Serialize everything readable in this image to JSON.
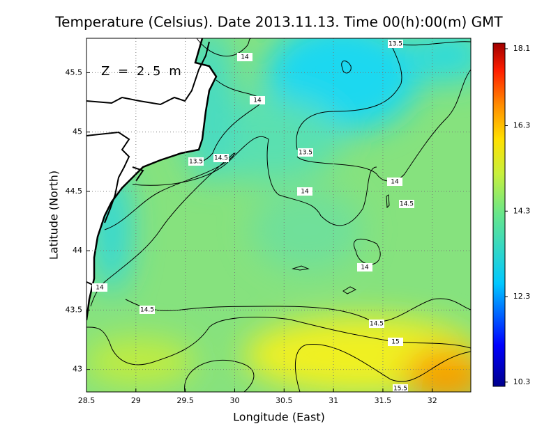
{
  "title": "Temperature (Celsius). Date 2013.11.13. Time 00(h):00(m) GMT",
  "depth_label": "Z = 2.5 m",
  "x_axis": {
    "label": "Longitude (East)",
    "lim": [
      28.5,
      32.39
    ],
    "ticks": [
      28.5,
      29,
      29.5,
      30,
      30.5,
      31,
      31.5,
      32
    ]
  },
  "y_axis": {
    "label": "Latitude (North)",
    "lim": [
      42.81,
      45.79
    ],
    "ticks": [
      43,
      43.5,
      44,
      44.5,
      45,
      45.5
    ]
  },
  "colorbar": {
    "lim": [
      10.2,
      18.23
    ],
    "ticks": [
      10.3,
      12.3,
      14.3,
      16.3,
      18.1
    ]
  },
  "contour_labels": [
    13.5,
    14,
    14,
    13.5,
    13.5,
    14.5,
    14,
    14,
    14.5,
    14,
    14,
    14.5,
    14.5,
    15,
    15.5
  ]
}
